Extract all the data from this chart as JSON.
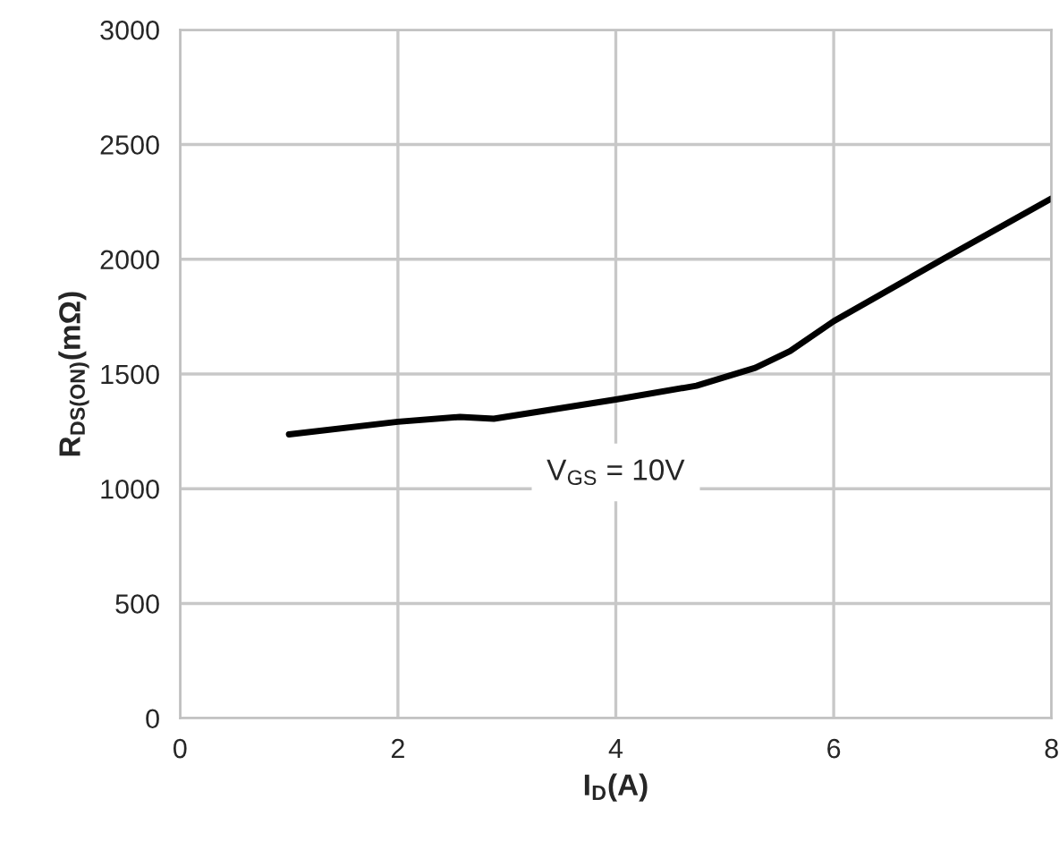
{
  "chart_data": {
    "type": "line",
    "xlabel": "I$_{D}$(A)",
    "ylabel": "R$_{DS(ON)}$(mΩ)",
    "x": [
      1.0,
      2.0,
      2.57,
      2.88,
      4.0,
      4.74,
      5.28,
      5.6,
      6.0,
      7.0,
      8.0
    ],
    "series": [
      {
        "color": "#000000",
        "values": [
          1237,
          1292,
          1313,
          1305,
          1389,
          1449,
          1527,
          1600,
          1730,
          2000,
          2265
        ]
      }
    ],
    "annotations": [
      "V$_{GS}$ = 10V"
    ],
    "xlim": [
      0,
      8
    ],
    "ylim": [
      0,
      3000
    ],
    "xticks": [
      0,
      2,
      4,
      6,
      8
    ],
    "yticks": [
      0,
      500,
      1000,
      1500,
      2000,
      2500,
      3000
    ],
    "grid": true,
    "legend": false,
    "marker": "none",
    "line_style": "solid"
  }
}
